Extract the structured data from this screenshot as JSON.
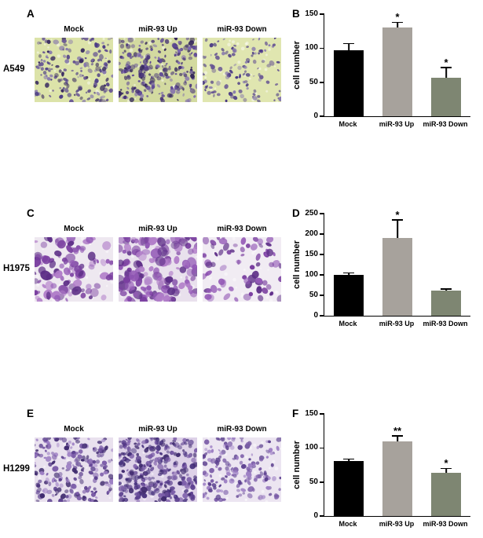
{
  "figure": {
    "rows": [
      {
        "image_panel": {
          "letter": "A",
          "cell_line": "A549",
          "conditions": [
            "Mock",
            "miR-93 Up",
            "miR-93 Down"
          ],
          "micrographs": [
            {
              "condition": "Mock",
              "bg": "#dce3a9",
              "palette": [
                "#4a3a85",
                "#675593",
                "#8678ad",
                "#37295f"
              ],
              "count": 175,
              "min_r": 1.2,
              "max_r": 3.2
            },
            {
              "condition": "miR-93 Up",
              "bg": "#d3daa0",
              "palette": [
                "#443076",
                "#5f4a96",
                "#7d68ae",
                "#32245c"
              ],
              "count": 235,
              "min_r": 1.2,
              "max_r": 3.4
            },
            {
              "condition": "miR-93 Down",
              "bg": "#e0e6b0",
              "palette": [
                "#4a3a85",
                "#675593",
                "#8678ad"
              ],
              "count": 115,
              "min_r": 1.2,
              "max_r": 3.0
            }
          ]
        },
        "chart_ref": 0
      },
      {
        "image_panel": {
          "letter": "C",
          "cell_line": "H1975",
          "conditions": [
            "Mock",
            "miR-93 Up",
            "miR-93 Down"
          ],
          "micrographs": [
            {
              "condition": "Mock",
              "bg": "#eee8f0",
              "palette": [
                "#7a3fa0",
                "#9359b6",
                "#5c2d86",
                "#b07cc8"
              ],
              "count": 105,
              "min_r": 2.5,
              "max_r": 6.0
            },
            {
              "condition": "miR-93 Up",
              "bg": "#e9e1ed",
              "palette": [
                "#7a3fa0",
                "#9359b6",
                "#5c2d86",
                "#b07cc8"
              ],
              "count": 160,
              "min_r": 2.5,
              "max_r": 6.5
            },
            {
              "condition": "miR-93 Down",
              "bg": "#f1ecf3",
              "palette": [
                "#7a3fa0",
                "#9359b6",
                "#5c2d86"
              ],
              "count": 75,
              "min_r": 2.5,
              "max_r": 5.5
            }
          ]
        },
        "chart_ref": 1
      },
      {
        "image_panel": {
          "letter": "E",
          "cell_line": "H1299",
          "conditions": [
            "Mock",
            "miR-93 Up",
            "miR-93 Down"
          ],
          "micrographs": [
            {
              "condition": "Mock",
              "bg": "#e9e1ee",
              "palette": [
                "#5b3f8e",
                "#7b5ca8",
                "#9d7fc4",
                "#3f2a6e"
              ],
              "count": 210,
              "min_r": 1.6,
              "max_r": 3.6
            },
            {
              "condition": "miR-93 Up",
              "bg": "#ded2e8",
              "palette": [
                "#5b3f8e",
                "#7b5ca8",
                "#3f2a6e",
                "#4a3580"
              ],
              "count": 300,
              "min_r": 1.6,
              "max_r": 3.7
            },
            {
              "condition": "miR-93 Down",
              "bg": "#ece5f1",
              "palette": [
                "#5b3f8e",
                "#7b5ca8",
                "#9d7fc4"
              ],
              "count": 165,
              "min_r": 1.6,
              "max_r": 3.5
            }
          ]
        },
        "chart_ref": 2
      }
    ]
  },
  "chart_data": [
    {
      "type": "bar",
      "panel": "B",
      "categories": [
        "Mock",
        "miR-93 Up",
        "miR-93 Down"
      ],
      "values": [
        97,
        130,
        57
      ],
      "errors": [
        10,
        8,
        15
      ],
      "significance": [
        "",
        "*",
        "*"
      ],
      "ylabel": "cell number",
      "xlabel": "",
      "ylim": [
        0,
        150
      ],
      "yticks": [
        0,
        50,
        100,
        150
      ],
      "bar_colors": [
        "#000000",
        "#a7a29c",
        "#7e8672"
      ],
      "legend": "none",
      "grid": "off"
    },
    {
      "type": "bar",
      "panel": "D",
      "categories": [
        "Mock",
        "miR-93 Up",
        "miR-93 Down"
      ],
      "values": [
        100,
        190,
        62
      ],
      "errors": [
        5,
        45,
        4
      ],
      "significance": [
        "",
        "*",
        ""
      ],
      "ylabel": "cell number",
      "xlabel": "",
      "ylim": [
        0,
        250
      ],
      "yticks": [
        0,
        50,
        100,
        150,
        200,
        250
      ],
      "bar_colors": [
        "#000000",
        "#a7a29c",
        "#7e8672"
      ],
      "legend": "none",
      "grid": "off"
    },
    {
      "type": "bar",
      "panel": "F",
      "categories": [
        "Mock",
        "miR-93 Up",
        "miR-93 Down"
      ],
      "values": [
        81,
        110,
        63
      ],
      "errors": [
        3,
        8,
        7
      ],
      "significance": [
        "",
        "**",
        "*"
      ],
      "ylabel": "cell number",
      "xlabel": "",
      "ylim": [
        0,
        150
      ],
      "yticks": [
        0,
        50,
        100,
        150
      ],
      "bar_colors": [
        "#000000",
        "#a7a29c",
        "#7e8672"
      ],
      "legend": "none",
      "grid": "off"
    }
  ]
}
